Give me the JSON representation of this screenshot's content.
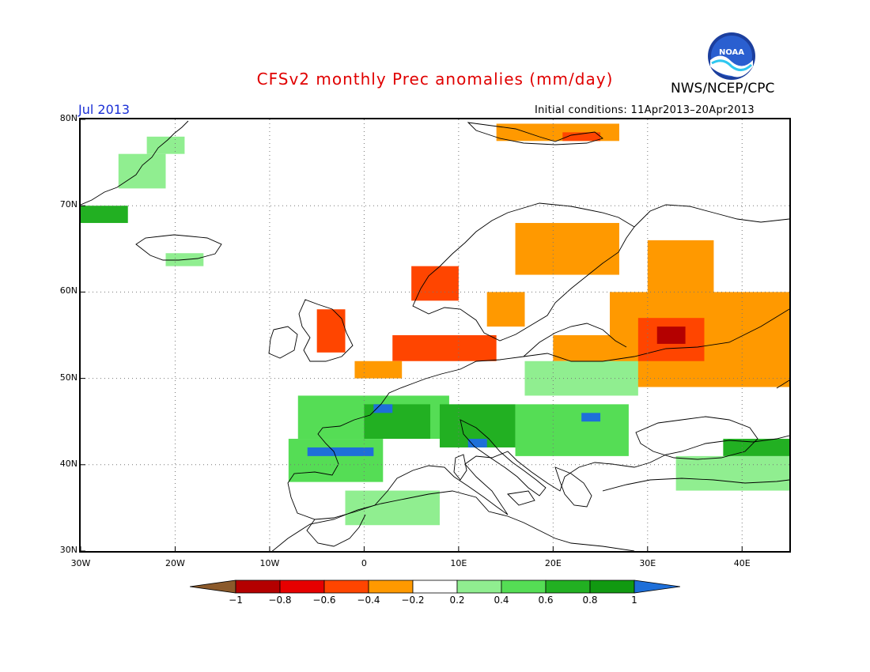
{
  "header": {
    "title": "CFSv2 monthly Prec anomalies (mm/day)",
    "agency": "NWS/NCEP/CPC",
    "month": "Jul 2013",
    "initial_conditions": "Initial conditions: 11Apr2013–20Apr2013",
    "logo_text": "NOAA"
  },
  "axes": {
    "lat_labels": [
      "80N",
      "70N",
      "60N",
      "50N",
      "40N",
      "30N"
    ],
    "lon_labels": [
      "30W",
      "20W",
      "10W",
      "0",
      "10E",
      "20E",
      "30E",
      "40E"
    ],
    "lat_range": [
      30,
      80
    ],
    "lon_range": [
      -30,
      45
    ],
    "grid": "dotted"
  },
  "colorbar": {
    "labels": [
      "−1",
      "−0.8",
      "−0.6",
      "−0.4",
      "−0.2",
      "0.2",
      "0.4",
      "0.6",
      "0.8",
      "1"
    ],
    "colors": [
      "#8b5a2b",
      "#b40000",
      "#e60000",
      "#ff4500",
      "#ff9900",
      "#ffffff",
      "#90ee90",
      "#55dd55",
      "#22b022",
      "#119911",
      "#1e6fd9"
    ]
  },
  "anomaly_regions": [
    {
      "level": "pos1",
      "color": "#90ee90",
      "lon": [
        -26,
        -21
      ],
      "lat": [
        72,
        76
      ]
    },
    {
      "level": "pos1",
      "color": "#90ee90",
      "lon": [
        -23,
        -19
      ],
      "lat": [
        76,
        78
      ]
    },
    {
      "level": "pos3",
      "color": "#22b022",
      "lon": [
        -30,
        -25
      ],
      "lat": [
        68,
        70
      ]
    },
    {
      "level": "pos1",
      "color": "#90ee90",
      "lon": [
        -21,
        -17
      ],
      "lat": [
        63,
        64.5
      ]
    },
    {
      "level": "neg2",
      "color": "#ff9900",
      "lon": [
        14,
        27
      ],
      "lat": [
        77.5,
        79.5
      ]
    },
    {
      "level": "neg3",
      "color": "#ff4500",
      "lon": [
        21,
        25
      ],
      "lat": [
        77.5,
        78.5
      ]
    },
    {
      "level": "neg3",
      "color": "#ff4500",
      "lon": [
        5,
        10
      ],
      "lat": [
        59,
        63
      ]
    },
    {
      "level": "neg2",
      "color": "#ff9900",
      "lon": [
        13,
        17
      ],
      "lat": [
        56,
        60
      ]
    },
    {
      "level": "neg2",
      "color": "#ff9900",
      "lon": [
        16,
        27
      ],
      "lat": [
        62,
        68
      ]
    },
    {
      "level": "neg2",
      "color": "#ff9900",
      "lon": [
        30,
        37
      ],
      "lat": [
        57,
        66
      ]
    },
    {
      "level": "neg2",
      "color": "#ff9900",
      "lon": [
        26,
        45
      ],
      "lat": [
        49,
        60
      ]
    },
    {
      "level": "neg3",
      "color": "#ff4500",
      "lon": [
        29,
        36
      ],
      "lat": [
        52,
        57
      ]
    },
    {
      "level": "neg4",
      "color": "#b40000",
      "lon": [
        31,
        34
      ],
      "lat": [
        54,
        56
      ]
    },
    {
      "level": "neg2",
      "color": "#ff9900",
      "lon": [
        20,
        26
      ],
      "lat": [
        52,
        55
      ]
    },
    {
      "level": "neg3",
      "color": "#ff4500",
      "lon": [
        -5,
        -2
      ],
      "lat": [
        53,
        58
      ]
    },
    {
      "level": "neg3",
      "color": "#ff4500",
      "lon": [
        3,
        14
      ],
      "lat": [
        52,
        55
      ]
    },
    {
      "level": "neg2",
      "color": "#ff9900",
      "lon": [
        -1,
        4
      ],
      "lat": [
        50,
        52
      ]
    },
    {
      "level": "pos1",
      "color": "#90ee90",
      "lon": [
        17,
        29
      ],
      "lat": [
        48,
        52
      ]
    },
    {
      "level": "pos2",
      "color": "#55dd55",
      "lon": [
        -7,
        9
      ],
      "lat": [
        43,
        48
      ]
    },
    {
      "level": "pos3",
      "color": "#22b022",
      "lon": [
        0,
        7
      ],
      "lat": [
        43,
        47
      ]
    },
    {
      "level": "pos4",
      "color": "#1e6fd9",
      "lon": [
        1,
        3
      ],
      "lat": [
        46,
        47
      ]
    },
    {
      "level": "pos2",
      "color": "#55dd55",
      "lon": [
        -8,
        2
      ],
      "lat": [
        38,
        43
      ]
    },
    {
      "level": "pos4",
      "color": "#1e6fd9",
      "lon": [
        -6,
        1
      ],
      "lat": [
        41,
        42
      ]
    },
    {
      "level": "pos3",
      "color": "#22b022",
      "lon": [
        8,
        16
      ],
      "lat": [
        42,
        47
      ]
    },
    {
      "level": "pos4",
      "color": "#1e6fd9",
      "lon": [
        11,
        13
      ],
      "lat": [
        42,
        43
      ]
    },
    {
      "level": "pos2",
      "color": "#55dd55",
      "lon": [
        16,
        28
      ],
      "lat": [
        41,
        47
      ]
    },
    {
      "level": "pos4",
      "color": "#1e6fd9",
      "lon": [
        23,
        25
      ],
      "lat": [
        45,
        46
      ]
    },
    {
      "level": "pos1",
      "color": "#90ee90",
      "lon": [
        -2,
        8
      ],
      "lat": [
        33,
        37
      ]
    },
    {
      "level": "pos1",
      "color": "#90ee90",
      "lon": [
        33,
        45
      ],
      "lat": [
        37,
        41
      ]
    },
    {
      "level": "pos3",
      "color": "#22b022",
      "lon": [
        38,
        45
      ],
      "lat": [
        41,
        43
      ]
    }
  ]
}
